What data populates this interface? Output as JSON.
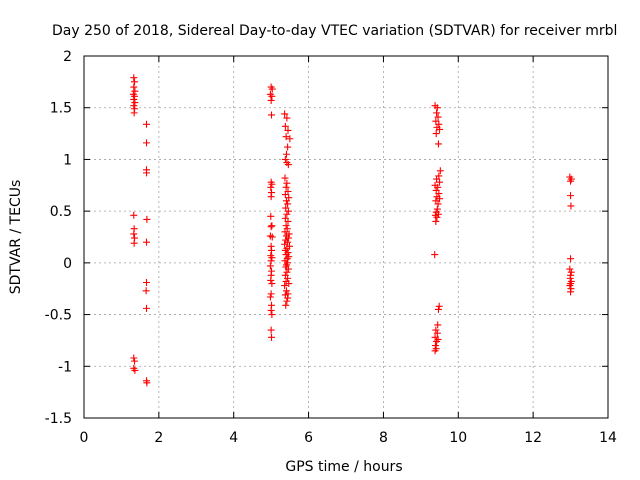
{
  "chart_data": {
    "type": "scatter",
    "title": "Day 250 of 2018, Sidereal Day-to-day VTEC variation (SDTVAR) for receiver mrbl",
    "xlabel": "GPS time / hours",
    "ylabel": "SDTVAR / TECUs",
    "xlim": [
      0,
      14
    ],
    "ylim": [
      -1.5,
      2
    ],
    "x_ticks": [
      0,
      2,
      4,
      6,
      8,
      10,
      12,
      14
    ],
    "y_ticks": [
      -1.5,
      -1,
      -0.5,
      0,
      0.5,
      1,
      1.5,
      2
    ],
    "x_tick_labels": [
      "0",
      "2",
      "4",
      "6",
      "8",
      "10",
      "12",
      "14"
    ],
    "y_tick_labels": [
      "-1.5",
      "-1",
      "-0.5",
      "0",
      "0.5",
      "1",
      "1.5",
      "2"
    ],
    "grid": true,
    "marker": "+",
    "color": "#ff0000",
    "series": [
      {
        "name": "SDTVAR",
        "points": [
          [
            1.33,
            1.79
          ],
          [
            1.35,
            1.75
          ],
          [
            1.33,
            1.7
          ],
          [
            1.36,
            1.66
          ],
          [
            1.32,
            1.63
          ],
          [
            1.35,
            1.61
          ],
          [
            1.33,
            1.58
          ],
          [
            1.36,
            1.55
          ],
          [
            1.33,
            1.52
          ],
          [
            1.35,
            1.49
          ],
          [
            1.34,
            1.45
          ],
          [
            1.33,
            0.46
          ],
          [
            1.34,
            0.33
          ],
          [
            1.33,
            0.28
          ],
          [
            1.35,
            0.24
          ],
          [
            1.34,
            0.19
          ],
          [
            1.33,
            -0.92
          ],
          [
            1.35,
            -0.95
          ],
          [
            1.33,
            -1.02
          ],
          [
            1.36,
            -1.04
          ],
          [
            1.67,
            1.34
          ],
          [
            1.67,
            1.16
          ],
          [
            1.67,
            0.9
          ],
          [
            1.67,
            0.87
          ],
          [
            1.68,
            0.42
          ],
          [
            1.67,
            0.2
          ],
          [
            1.67,
            -0.19
          ],
          [
            1.66,
            -0.27
          ],
          [
            1.67,
            -0.44
          ],
          [
            1.67,
            -1.14
          ],
          [
            1.68,
            -1.16
          ],
          [
            5.0,
            1.7
          ],
          [
            5.03,
            1.68
          ],
          [
            4.98,
            1.63
          ],
          [
            5.02,
            1.61
          ],
          [
            5.0,
            1.57
          ],
          [
            5.01,
            1.43
          ],
          [
            5.0,
            0.78
          ],
          [
            5.02,
            0.76
          ],
          [
            4.99,
            0.73
          ],
          [
            5.01,
            0.68
          ],
          [
            5.0,
            0.64
          ],
          [
            4.99,
            0.45
          ],
          [
            5.02,
            0.36
          ],
          [
            5.0,
            0.35
          ],
          [
            4.98,
            0.26
          ],
          [
            5.03,
            0.25
          ],
          [
            5.0,
            0.16
          ],
          [
            5.01,
            0.12
          ],
          [
            4.99,
            0.07
          ],
          [
            5.02,
            0.05
          ],
          [
            5.0,
            0.02
          ],
          [
            4.98,
            -0.03
          ],
          [
            5.01,
            -0.08
          ],
          [
            5.0,
            -0.12
          ],
          [
            4.99,
            -0.17
          ],
          [
            5.02,
            -0.2
          ],
          [
            5.0,
            -0.3
          ],
          [
            4.98,
            -0.33
          ],
          [
            5.01,
            -0.41
          ],
          [
            5.0,
            -0.46
          ],
          [
            5.02,
            -0.5
          ],
          [
            5.0,
            -0.65
          ],
          [
            5.01,
            -0.72
          ],
          [
            5.36,
            1.44
          ],
          [
            5.42,
            1.4
          ],
          [
            5.38,
            1.32
          ],
          [
            5.45,
            1.28
          ],
          [
            5.4,
            1.22
          ],
          [
            5.5,
            1.2
          ],
          [
            5.44,
            1.12
          ],
          [
            5.41,
            1.05
          ],
          [
            5.38,
            1.0
          ],
          [
            5.42,
            0.97
          ],
          [
            5.46,
            0.95
          ],
          [
            5.37,
            0.82
          ],
          [
            5.42,
            0.77
          ],
          [
            5.4,
            0.73
          ],
          [
            5.45,
            0.69
          ],
          [
            5.38,
            0.66
          ],
          [
            5.47,
            0.63
          ],
          [
            5.41,
            0.6
          ],
          [
            5.44,
            0.57
          ],
          [
            5.39,
            0.53
          ],
          [
            5.46,
            0.5
          ],
          [
            5.42,
            0.47
          ],
          [
            5.38,
            0.43
          ],
          [
            5.45,
            0.4
          ],
          [
            5.4,
            0.36
          ],
          [
            5.43,
            0.33
          ],
          [
            5.37,
            0.3
          ],
          [
            5.48,
            0.28
          ],
          [
            5.41,
            0.26
          ],
          [
            5.46,
            0.24
          ],
          [
            5.39,
            0.22
          ],
          [
            5.44,
            0.2
          ],
          [
            5.36,
            0.18
          ],
          [
            5.49,
            0.16
          ],
          [
            5.42,
            0.14
          ],
          [
            5.38,
            0.12
          ],
          [
            5.45,
            0.1
          ],
          [
            5.4,
            0.08
          ],
          [
            5.47,
            0.06
          ],
          [
            5.43,
            0.04
          ],
          [
            5.37,
            0.02
          ],
          [
            5.44,
            0.0
          ],
          [
            5.41,
            -0.02
          ],
          [
            5.39,
            -0.04
          ],
          [
            5.46,
            -0.06
          ],
          [
            5.42,
            -0.09
          ],
          [
            5.38,
            -0.12
          ],
          [
            5.44,
            -0.15
          ],
          [
            5.4,
            -0.18
          ],
          [
            5.47,
            -0.2
          ],
          [
            5.36,
            -0.22
          ],
          [
            5.41,
            -0.27
          ],
          [
            5.45,
            -0.3
          ],
          [
            5.38,
            -0.31
          ],
          [
            5.44,
            -0.34
          ],
          [
            5.42,
            -0.37
          ],
          [
            5.39,
            -0.41
          ],
          [
            9.38,
            1.52
          ],
          [
            9.44,
            1.5
          ],
          [
            9.42,
            1.45
          ],
          [
            9.46,
            1.41
          ],
          [
            9.4,
            1.37
          ],
          [
            9.48,
            1.34
          ],
          [
            9.43,
            1.31
          ],
          [
            9.5,
            1.29
          ],
          [
            9.41,
            1.25
          ],
          [
            9.47,
            1.15
          ],
          [
            9.52,
            0.89
          ],
          [
            9.48,
            0.84
          ],
          [
            9.42,
            0.81
          ],
          [
            9.5,
            0.78
          ],
          [
            9.38,
            0.75
          ],
          [
            9.45,
            0.73
          ],
          [
            9.41,
            0.7
          ],
          [
            9.48,
            0.67
          ],
          [
            9.43,
            0.64
          ],
          [
            9.5,
            0.62
          ],
          [
            9.4,
            0.6
          ],
          [
            9.46,
            0.57
          ],
          [
            9.44,
            0.52
          ],
          [
            9.41,
            0.49
          ],
          [
            9.47,
            0.47
          ],
          [
            9.39,
            0.46
          ],
          [
            9.43,
            0.44
          ],
          [
            9.4,
            0.4
          ],
          [
            9.37,
            0.08
          ],
          [
            9.49,
            -0.42
          ],
          [
            9.47,
            -0.45
          ],
          [
            9.45,
            -0.6
          ],
          [
            9.4,
            -0.65
          ],
          [
            9.44,
            -0.68
          ],
          [
            9.38,
            -0.72
          ],
          [
            9.46,
            -0.74
          ],
          [
            9.42,
            -0.76
          ],
          [
            9.39,
            -0.8
          ],
          [
            9.41,
            -0.83
          ],
          [
            9.38,
            -0.85
          ],
          [
            12.98,
            0.83
          ],
          [
            13.02,
            0.81
          ],
          [
            13.0,
            0.79
          ],
          [
            13.0,
            0.65
          ],
          [
            13.01,
            0.55
          ],
          [
            13.0,
            0.04
          ],
          [
            12.98,
            -0.06
          ],
          [
            13.02,
            -0.09
          ],
          [
            13.0,
            -0.12
          ],
          [
            12.99,
            -0.15
          ],
          [
            13.02,
            -0.18
          ],
          [
            13.0,
            -0.2
          ],
          [
            12.98,
            -0.22
          ],
          [
            13.01,
            -0.25
          ],
          [
            13.0,
            -0.28
          ]
        ]
      }
    ]
  }
}
